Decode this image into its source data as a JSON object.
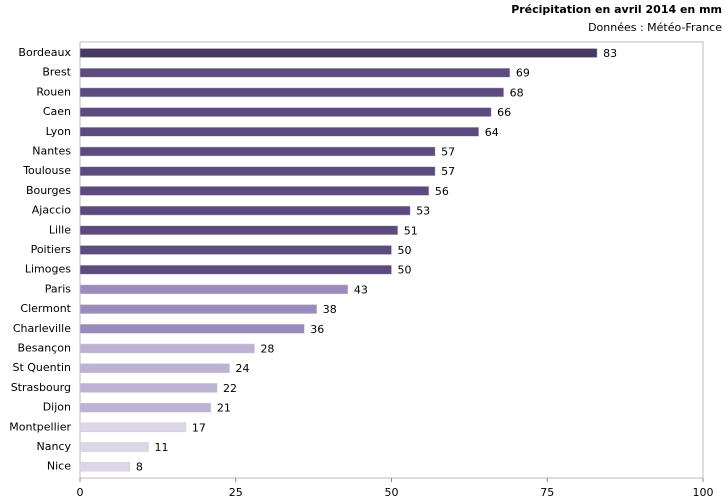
{
  "chart_data": {
    "type": "hbar",
    "title": "Précipitation en avril 2014  en mm",
    "subtitle": "Données : Météo-France",
    "categories": [
      "Bordeaux",
      "Brest",
      "Rouen",
      "Caen",
      "Lyon",
      "Nantes",
      "Toulouse",
      "Bourges",
      "Ajaccio",
      "Lille",
      "Poitiers",
      "Limoges",
      "Paris",
      "Clermont",
      "Charleville",
      "Besançon",
      "St Quentin",
      "Strasbourg",
      "Dijon",
      "Montpellier",
      "Nancy",
      "Nice"
    ],
    "values": [
      83,
      69,
      68,
      66,
      64,
      57,
      57,
      56,
      53,
      51,
      50,
      50,
      43,
      38,
      36,
      28,
      24,
      22,
      21,
      17,
      11,
      8
    ],
    "colors": [
      "#4a3a63",
      "#5d4a7e",
      "#5d4a7e",
      "#5d4a7e",
      "#5d4a7e",
      "#5d4a7e",
      "#5d4a7e",
      "#5d4a7e",
      "#5d4a7e",
      "#5d4a7e",
      "#5d4a7e",
      "#5d4a7e",
      "#9a8bbd",
      "#9a8bbd",
      "#9a8bbd",
      "#bdb2d4",
      "#bdb2d4",
      "#bdb2d4",
      "#bdb2d4",
      "#ddd6e9",
      "#ddd6e9",
      "#ddd6e9"
    ],
    "xlim": [
      0,
      100
    ],
    "xticks": [
      0,
      25,
      50,
      75,
      100
    ]
  }
}
